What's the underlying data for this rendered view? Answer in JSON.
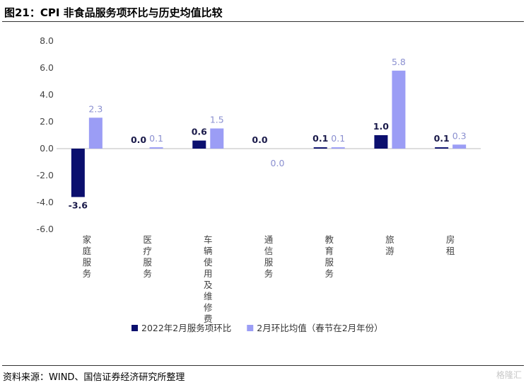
{
  "header": {
    "title": "图21：CPI 非食品服务项环比与历史均值比较"
  },
  "source": "资料来源：WIND、国信证券经济研究所整理",
  "watermark": "格隆汇",
  "colors": {
    "series1": "#0b0f6e",
    "series2": "#9b9df5",
    "axis_text": "#444444",
    "label1": "#1a1a4a",
    "label2": "#8a8fd0"
  },
  "chart_data": {
    "type": "bar",
    "title": "",
    "xlabel": "",
    "ylabel": "",
    "ylim": [
      -6.0,
      8.0
    ],
    "yticks": [
      "8.0",
      "6.0",
      "4.0",
      "2.0",
      "0.0",
      "-2.0",
      "-4.0",
      "-6.0"
    ],
    "categories": [
      "家庭服务",
      "医疗服务",
      "车辆使用及维修费",
      "通信服务",
      "教育服务",
      "旅游",
      "房租"
    ],
    "series": [
      {
        "name": "2022年2月服务项环比",
        "values": [
          -3.6,
          0.0,
          0.6,
          0.0,
          0.1,
          1.0,
          0.1
        ],
        "labels": [
          "-3.6",
          "0.0",
          "0.6",
          "0.0",
          "0.1",
          "1.0",
          "0.1"
        ]
      },
      {
        "name": "2月环比均值（春节在2月年份）",
        "values": [
          2.3,
          0.1,
          1.5,
          0.0,
          0.1,
          5.8,
          0.3
        ],
        "labels": [
          "2.3",
          "0.1",
          "1.5",
          "0.0",
          "0.1",
          "5.8",
          "0.3"
        ]
      }
    ],
    "grid": false,
    "legend_position": "bottom"
  }
}
